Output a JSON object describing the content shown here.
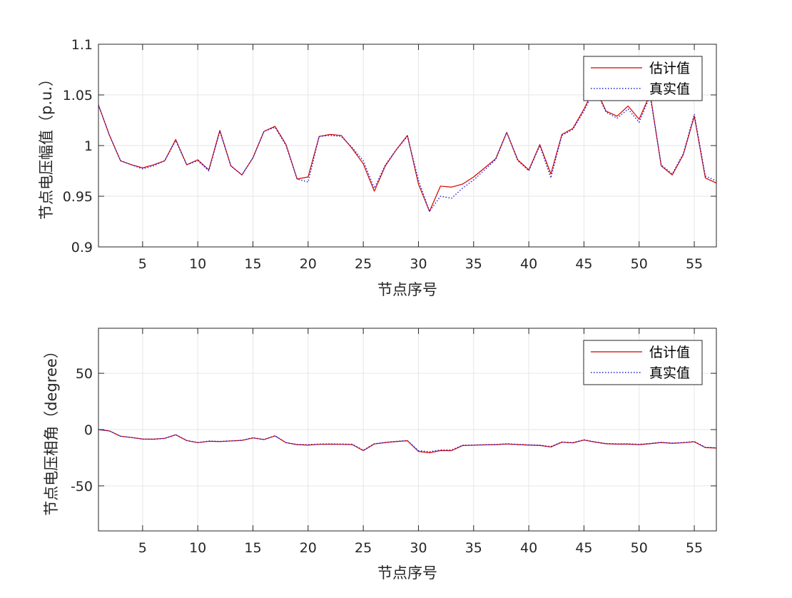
{
  "chart_data": [
    {
      "type": "line",
      "xlabel": "节点序号",
      "ylabel": "节点电压幅值（p.u.）",
      "xlim": [
        1,
        57
      ],
      "ylim": [
        0.9,
        1.1
      ],
      "xticks": [
        5,
        10,
        15,
        20,
        25,
        30,
        35,
        40,
        45,
        50,
        55
      ],
      "xtick_labels": [
        "5",
        "10",
        "15",
        "20",
        "25",
        "30",
        "35",
        "40",
        "45",
        "50",
        "55"
      ],
      "yticks": [
        0.9,
        0.95,
        1.0,
        1.05,
        1.1
      ],
      "ytick_labels": [
        "0.9",
        "0.95",
        "1",
        "1.05",
        "1.1"
      ],
      "grid": true,
      "legend_position": "top-right",
      "x": [
        1,
        2,
        3,
        4,
        5,
        6,
        7,
        8,
        9,
        10,
        11,
        12,
        13,
        14,
        15,
        16,
        17,
        18,
        19,
        20,
        21,
        22,
        23,
        24,
        25,
        26,
        27,
        28,
        29,
        30,
        31,
        32,
        33,
        34,
        35,
        36,
        37,
        38,
        39,
        40,
        41,
        42,
        43,
        44,
        45,
        46,
        47,
        48,
        49,
        50,
        51,
        52,
        53,
        54,
        55,
        56,
        57
      ],
      "series": [
        {
          "name": "估计值",
          "color": "#d40000",
          "style": "solid",
          "values": [
            1.04,
            1.01,
            0.985,
            0.981,
            0.978,
            0.981,
            0.985,
            1.006,
            0.981,
            0.986,
            0.976,
            1.015,
            0.98,
            0.971,
            0.988,
            1.014,
            1.019,
            1.001,
            0.967,
            0.969,
            1.009,
            1.011,
            1.01,
            0.997,
            0.982,
            0.955,
            0.98,
            0.996,
            1.01,
            0.962,
            0.935,
            0.96,
            0.959,
            0.962,
            0.969,
            0.978,
            0.987,
            1.013,
            0.986,
            0.976,
            1.001,
            0.972,
            1.011,
            1.017,
            1.036,
            1.058,
            1.034,
            1.029,
            1.039,
            1.026,
            1.051,
            0.98,
            0.971,
            0.991,
            1.029,
            0.968,
            0.963
          ]
        },
        {
          "name": "真实值",
          "color": "#1f1fd6",
          "style": "dotted",
          "values": [
            1.04,
            1.01,
            0.985,
            0.981,
            0.977,
            0.98,
            0.985,
            1.005,
            0.981,
            0.985,
            0.975,
            1.014,
            0.98,
            0.971,
            0.988,
            1.014,
            1.018,
            1.0,
            0.967,
            0.964,
            1.009,
            1.01,
            1.009,
            0.998,
            0.985,
            0.958,
            0.981,
            0.996,
            1.009,
            0.966,
            0.935,
            0.95,
            0.948,
            0.958,
            0.966,
            0.976,
            0.986,
            1.013,
            0.985,
            0.975,
            1.0,
            0.968,
            1.01,
            1.016,
            1.034,
            1.056,
            1.033,
            1.027,
            1.036,
            1.023,
            1.049,
            0.981,
            0.972,
            0.992,
            1.031,
            0.97,
            0.965
          ]
        }
      ]
    },
    {
      "type": "line",
      "xlabel": "节点序号",
      "ylabel": "节点电压相角（degree）",
      "xlim": [
        1,
        57
      ],
      "ylim": [
        -90,
        90
      ],
      "xticks": [
        5,
        10,
        15,
        20,
        25,
        30,
        35,
        40,
        45,
        50,
        55
      ],
      "xtick_labels": [
        "5",
        "10",
        "15",
        "20",
        "25",
        "30",
        "35",
        "40",
        "45",
        "50",
        "55"
      ],
      "yticks": [
        -50,
        0,
        50
      ],
      "ytick_labels": [
        "-50",
        "0",
        "50"
      ],
      "grid": true,
      "legend_position": "top-right",
      "x": [
        1,
        2,
        3,
        4,
        5,
        6,
        7,
        8,
        9,
        10,
        11,
        12,
        13,
        14,
        15,
        16,
        17,
        18,
        19,
        20,
        21,
        22,
        23,
        24,
        25,
        26,
        27,
        28,
        29,
        30,
        31,
        32,
        33,
        34,
        35,
        36,
        37,
        38,
        39,
        40,
        41,
        42,
        43,
        44,
        45,
        46,
        47,
        48,
        49,
        50,
        51,
        52,
        53,
        54,
        55,
        56,
        57
      ],
      "series": [
        {
          "name": "估计值",
          "color": "#d40000",
          "style": "solid",
          "values": [
            0,
            -1.2,
            -5.9,
            -7.0,
            -8.4,
            -8.5,
            -7.8,
            -4.6,
            -9.8,
            -11.6,
            -10.4,
            -10.6,
            -10.1,
            -9.6,
            -7.4,
            -8.9,
            -5.6,
            -11.6,
            -13.4,
            -13.8,
            -13.1,
            -13.0,
            -13.1,
            -13.3,
            -18.7,
            -12.8,
            -11.5,
            -10.6,
            -9.9,
            -19.4,
            -20.6,
            -18.6,
            -18.7,
            -14.2,
            -13.9,
            -13.6,
            -13.4,
            -12.8,
            -13.3,
            -13.8,
            -14.1,
            -15.5,
            -11.2,
            -11.8,
            -9.3,
            -11.1,
            -12.6,
            -12.9,
            -12.9,
            -13.4,
            -12.5,
            -11.5,
            -12.2,
            -11.7,
            -10.8,
            -16.0,
            -16.4
          ]
        },
        {
          "name": "真实值",
          "color": "#1f1fd6",
          "style": "dotted",
          "values": [
            0,
            -1.2,
            -5.9,
            -7.0,
            -8.5,
            -8.6,
            -7.8,
            -4.5,
            -9.6,
            -11.5,
            -10.2,
            -10.5,
            -10.0,
            -9.5,
            -7.2,
            -8.7,
            -5.5,
            -11.7,
            -13.2,
            -13.4,
            -12.8,
            -12.7,
            -12.8,
            -13.0,
            -18.3,
            -12.6,
            -11.4,
            -10.4,
            -9.8,
            -18.7,
            -19.6,
            -18.1,
            -18.1,
            -13.9,
            -13.7,
            -13.4,
            -13.2,
            -12.6,
            -13.1,
            -13.5,
            -13.8,
            -15.0,
            -11.0,
            -11.6,
            -9.1,
            -10.9,
            -12.4,
            -12.7,
            -12.6,
            -13.1,
            -12.3,
            -11.3,
            -12.0,
            -11.5,
            -10.6,
            -15.7,
            -16.1
          ]
        }
      ]
    }
  ]
}
